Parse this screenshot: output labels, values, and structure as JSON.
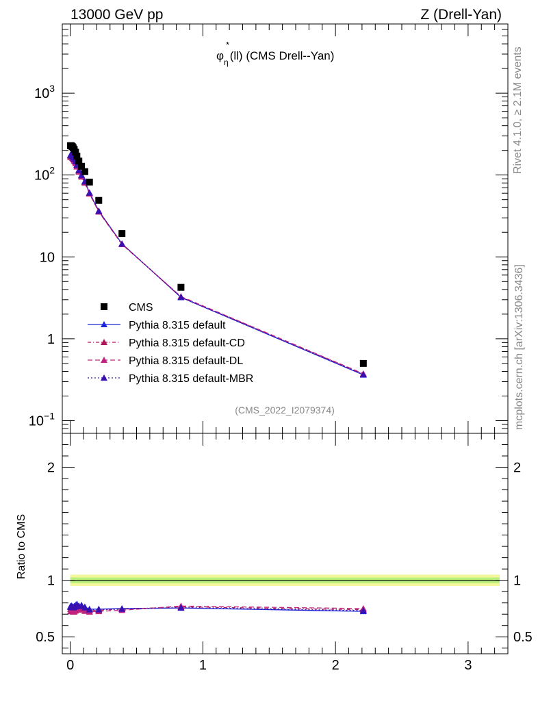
{
  "header": {
    "left": "13000 GeV pp",
    "right": "Z (Drell-Yan)"
  },
  "side": {
    "rivet": "Rivet 4.1.0, ≥ 2.1M events",
    "mcplots": "mcplots.cern.ch [arXiv:1306.3436]"
  },
  "chart_data": {
    "type": "scatter",
    "title_symbol": "φ",
    "title_star": "*",
    "title_sub": "η",
    "title_rest": "(ll) (CMS Drell--Yan)",
    "analysis_id": "(CMS_2022_I2079374)",
    "x_range": [
      -0.06,
      3.3
    ],
    "x_ticks": [
      "0",
      "1",
      "2",
      "3"
    ],
    "main": {
      "scale": "log",
      "y_range": [
        0.07,
        7000
      ],
      "y_ticks": [
        {
          "v": 0.1,
          "base": "10",
          "exp": "−1"
        },
        {
          "v": 1,
          "base": "1",
          "exp": ""
        },
        {
          "v": 10,
          "base": "10",
          "exp": ""
        },
        {
          "v": 100,
          "base": "10",
          "exp": "2"
        },
        {
          "v": 1000,
          "base": "10",
          "exp": "3"
        }
      ]
    },
    "ratio": {
      "ylabel": "Ratio to CMS",
      "y_range": [
        0.35,
        2.3
      ],
      "y_ticks": [
        "0.5",
        "1",
        "2"
      ],
      "band_inner": 0.025,
      "band_outer": 0.05
    },
    "x": [
      0.002,
      0.006,
      0.01,
      0.016,
      0.022,
      0.03,
      0.04,
      0.05,
      0.065,
      0.085,
      0.11,
      0.145,
      0.215,
      0.39,
      0.835,
      2.21
    ],
    "data": {
      "name": "CMS",
      "values": [
        228,
        228,
        226,
        222,
        215,
        205,
        190,
        170,
        148,
        128,
        110,
        82,
        49,
        19.3,
        4.25,
        0.5
      ]
    },
    "series": [
      {
        "name": "Pythia 8.315 default",
        "color": "#1f26d9",
        "dash": "",
        "values": [
          176,
          176,
          175,
          170,
          164,
          158,
          148,
          134,
          115,
          100,
          84,
          61,
          36.5,
          14.5,
          3.2,
          0.362
        ],
        "ratio": [
          0.77,
          0.77,
          0.775,
          0.765,
          0.765,
          0.77,
          0.78,
          0.79,
          0.775,
          0.78,
          0.765,
          0.745,
          0.745,
          0.75,
          0.755,
          0.725
        ]
      },
      {
        "name": "Pythia 8.315 default-CD",
        "color": "#b0175b",
        "dash": "5,3,1,3",
        "values": [
          170,
          171,
          170,
          166,
          160,
          153,
          144,
          130,
          112,
          98,
          82,
          60,
          36,
          14.4,
          3.25,
          0.37
        ],
        "ratio": [
          0.745,
          0.75,
          0.755,
          0.748,
          0.745,
          0.748,
          0.758,
          0.765,
          0.758,
          0.765,
          0.745,
          0.73,
          0.735,
          0.745,
          0.765,
          0.74
        ]
      },
      {
        "name": "Pythia 8.315 default-DL",
        "color": "#c0247e",
        "dash": "7,4",
        "values": [
          165,
          166,
          165,
          161,
          155,
          148,
          139,
          126,
          109,
          95,
          80,
          59,
          35.5,
          14.2,
          3.28,
          0.375
        ],
        "ratio": [
          0.725,
          0.73,
          0.73,
          0.725,
          0.72,
          0.722,
          0.73,
          0.74,
          0.738,
          0.742,
          0.727,
          0.72,
          0.725,
          0.735,
          0.772,
          0.75
        ]
      },
      {
        "name": "Pythia 8.315 default-MBR",
        "color": "#3a10b0",
        "dash": "2,3",
        "values": [
          174,
          174,
          173,
          169,
          163,
          156,
          146,
          132,
          114,
          99,
          83,
          60.5,
          36.2,
          14.4,
          3.22,
          0.366
        ],
        "ratio": [
          0.762,
          0.765,
          0.765,
          0.762,
          0.758,
          0.762,
          0.768,
          0.775,
          0.77,
          0.773,
          0.757,
          0.74,
          0.74,
          0.745,
          0.758,
          0.732
        ]
      }
    ]
  }
}
